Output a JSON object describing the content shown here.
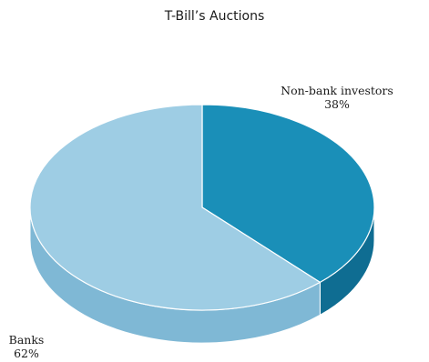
{
  "chart_data": {
    "type": "pie",
    "title": "T-Bill’s Auctions",
    "slices": [
      {
        "name": "Non-bank investors",
        "value": 38,
        "label": "38%",
        "color": "#1a8fb8",
        "side_color": "#0f6d92"
      },
      {
        "name": "Banks",
        "value": 62,
        "label": "62%",
        "color": "#9ecde4",
        "side_color": "#7fb8d5"
      }
    ],
    "legend": "none",
    "style": "3d"
  }
}
